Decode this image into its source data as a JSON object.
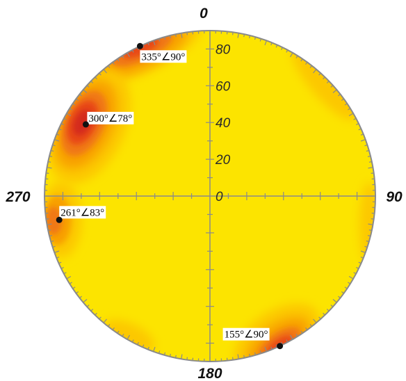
{
  "chart_data": {
    "type": "stereonet-contour",
    "title": "",
    "compass_labels": [
      "0",
      "90",
      "180",
      "270"
    ],
    "radial_ticks": [
      "0",
      "20",
      "40",
      "60",
      "80"
    ],
    "radial_range": [
      0,
      90
    ],
    "grid": false,
    "colors": {
      "low": "#fce400",
      "mid_low": "#fcc800",
      "mid": "#f8a000",
      "mid_high": "#f07818",
      "high": "#e84a18",
      "peak": "#d42a1e",
      "axis": "#8a8a8a",
      "pole": "#111111"
    },
    "poles": [
      {
        "dip_direction": 335,
        "dip": 90,
        "label": "335°∠90°"
      },
      {
        "dip_direction": 300,
        "dip": 78,
        "label": "300°∠78°"
      },
      {
        "dip_direction": 261,
        "dip": 83,
        "label": "261°∠83°"
      },
      {
        "dip_direction": 155,
        "dip": 90,
        "label": "155°∠90°"
      }
    ]
  }
}
